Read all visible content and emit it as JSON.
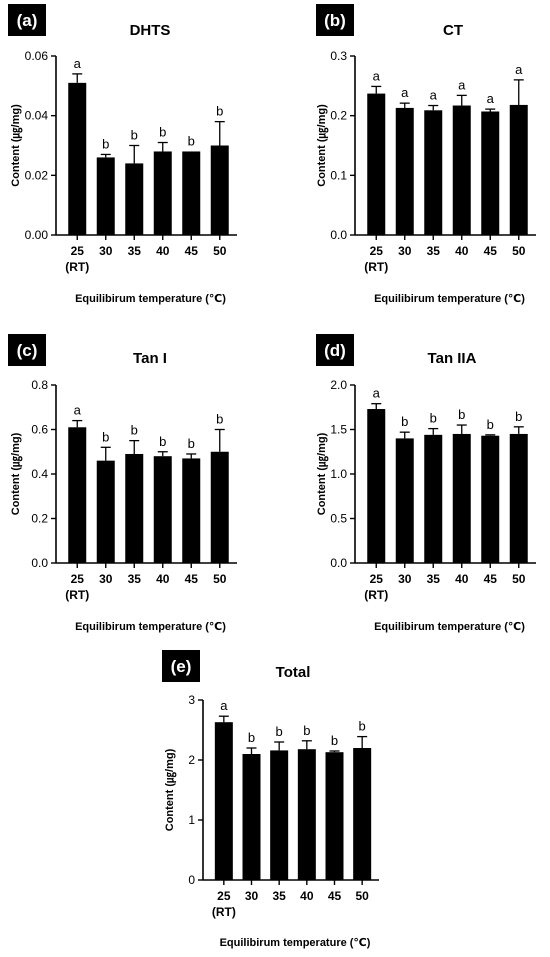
{
  "colors": {
    "bar": "#000000",
    "tag_bg": "#000000",
    "tag_text": "#ffffff"
  },
  "shared": {
    "categories": [
      "25",
      "30",
      "35",
      "40",
      "45",
      "50"
    ],
    "category_sublabels": [
      "(RT)",
      "",
      "",
      "",
      "",
      ""
    ],
    "xlabel": "Equilibirum temperature (℃)",
    "ylabel": "Content (㎍/mg)"
  },
  "chart_data": [
    {
      "type": "bar",
      "panel": "(a)",
      "title": "DHTS",
      "categories": [
        "25",
        "30",
        "35",
        "40",
        "45",
        "50"
      ],
      "values": [
        0.051,
        0.026,
        0.024,
        0.028,
        0.028,
        0.03
      ],
      "errors": [
        0.003,
        0.001,
        0.006,
        0.003,
        0.0,
        0.008
      ],
      "letters": [
        "a",
        "b",
        "b",
        "b",
        "b",
        "b"
      ],
      "ylim": [
        0,
        0.06
      ],
      "yticks": [
        "0.00",
        "0.02",
        "0.04",
        "0.06"
      ]
    },
    {
      "type": "bar",
      "panel": "(b)",
      "title": "CT",
      "categories": [
        "25",
        "30",
        "35",
        "40",
        "45",
        "50"
      ],
      "values": [
        0.237,
        0.213,
        0.209,
        0.217,
        0.207,
        0.218
      ],
      "errors": [
        0.012,
        0.008,
        0.008,
        0.017,
        0.004,
        0.042
      ],
      "letters": [
        "a",
        "a",
        "a",
        "a",
        "a",
        "a"
      ],
      "ylim": [
        0,
        0.3
      ],
      "yticks": [
        "0.0",
        "0.1",
        "0.2",
        "0.3"
      ]
    },
    {
      "type": "bar",
      "panel": "(c)",
      "title": "Tan I",
      "categories": [
        "25",
        "30",
        "35",
        "40",
        "45",
        "50"
      ],
      "values": [
        0.61,
        0.46,
        0.49,
        0.48,
        0.47,
        0.5
      ],
      "errors": [
        0.03,
        0.06,
        0.06,
        0.02,
        0.02,
        0.1
      ],
      "letters": [
        "a",
        "b",
        "b",
        "b",
        "b",
        "b"
      ],
      "ylim": [
        0,
        0.8
      ],
      "yticks": [
        "0.0",
        "0.2",
        "0.4",
        "0.6",
        "0.8"
      ]
    },
    {
      "type": "bar",
      "panel": "(d)",
      "title": "Tan IIA",
      "categories": [
        "25",
        "30",
        "35",
        "40",
        "45",
        "50"
      ],
      "values": [
        1.73,
        1.4,
        1.44,
        1.45,
        1.43,
        1.45
      ],
      "errors": [
        0.06,
        0.07,
        0.07,
        0.1,
        0.01,
        0.08
      ],
      "letters": [
        "a",
        "b",
        "b",
        "b",
        "b",
        "b"
      ],
      "ylim": [
        0,
        2.0
      ],
      "yticks": [
        "0.0",
        "0.5",
        "1.0",
        "1.5",
        "2.0"
      ]
    },
    {
      "type": "bar",
      "panel": "(e)",
      "title": "Total",
      "categories": [
        "25",
        "30",
        "35",
        "40",
        "45",
        "50"
      ],
      "values": [
        2.63,
        2.1,
        2.16,
        2.18,
        2.13,
        2.2
      ],
      "errors": [
        0.1,
        0.1,
        0.14,
        0.14,
        0.02,
        0.19
      ],
      "letters": [
        "a",
        "b",
        "b",
        "b",
        "b",
        "b"
      ],
      "ylim": [
        0,
        3
      ],
      "yticks": [
        "0",
        "1",
        "2",
        "3"
      ]
    }
  ]
}
